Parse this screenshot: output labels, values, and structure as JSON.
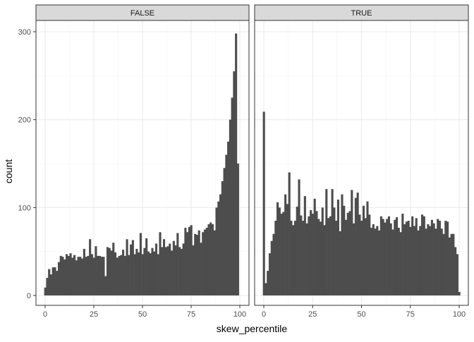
{
  "colors": {
    "bar": "#4d4d4d",
    "strip_fill": "#d9d9d9",
    "strip_border": "#333333",
    "panel_border": "#333333",
    "grid_major": "#ebebeb",
    "grid_minor": "#f5f5f5"
  },
  "chart_data": {
    "type": "bar",
    "subtype": "histogram",
    "xlabel": "skew_percentile",
    "ylabel": "count",
    "xlim": [
      0,
      100
    ],
    "ylim": [
      0,
      300
    ],
    "x_ticks": [
      0,
      25,
      50,
      75,
      100
    ],
    "y_ticks": [
      0,
      100,
      200,
      300
    ],
    "grid": true,
    "bin_width": 1,
    "panels": [
      {
        "label": "FALSE",
        "bins": [
          0,
          1,
          2,
          3,
          4,
          5,
          6,
          7,
          8,
          9,
          10,
          11,
          12,
          13,
          14,
          15,
          16,
          17,
          18,
          19,
          20,
          21,
          22,
          23,
          24,
          25,
          26,
          27,
          28,
          29,
          30,
          31,
          32,
          33,
          34,
          35,
          36,
          37,
          38,
          39,
          40,
          41,
          42,
          43,
          44,
          45,
          46,
          47,
          48,
          49,
          50,
          51,
          52,
          53,
          54,
          55,
          56,
          57,
          58,
          59,
          60,
          61,
          62,
          63,
          64,
          65,
          66,
          67,
          68,
          69,
          70,
          71,
          72,
          73,
          74,
          75,
          76,
          77,
          78,
          79,
          80,
          81,
          82,
          83,
          84,
          85,
          86,
          87,
          88,
          89,
          90,
          91,
          92,
          93,
          94,
          95,
          96,
          97,
          98,
          99,
          100
        ],
        "counts": [
          9,
          20,
          30,
          24,
          32,
          32,
          28,
          38,
          45,
          44,
          41,
          47,
          45,
          48,
          43,
          46,
          40,
          44,
          44,
          42,
          53,
          44,
          45,
          64,
          47,
          43,
          56,
          45,
          45,
          44,
          44,
          22,
          55,
          54,
          51,
          60,
          49,
          43,
          45,
          46,
          52,
          45,
          64,
          46,
          58,
          63,
          47,
          53,
          49,
          71,
          47,
          54,
          65,
          50,
          48,
          54,
          50,
          59,
          47,
          72,
          55,
          64,
          55,
          56,
          59,
          51,
          62,
          57,
          71,
          55,
          53,
          59,
          77,
          72,
          78,
          80,
          57,
          70,
          69,
          74,
          60,
          72,
          75,
          77,
          81,
          83,
          81,
          74,
          100,
          107,
          115,
          130,
          145,
          160,
          175,
          200,
          225,
          255,
          298,
          150,
          0
        ]
      },
      {
        "label": "TRUE",
        "bins": [
          0,
          1,
          2,
          3,
          4,
          5,
          6,
          7,
          8,
          9,
          10,
          11,
          12,
          13,
          14,
          15,
          16,
          17,
          18,
          19,
          20,
          21,
          22,
          23,
          24,
          25,
          26,
          27,
          28,
          29,
          30,
          31,
          32,
          33,
          34,
          35,
          36,
          37,
          38,
          39,
          40,
          41,
          42,
          43,
          44,
          45,
          46,
          47,
          48,
          49,
          50,
          51,
          52,
          53,
          54,
          55,
          56,
          57,
          58,
          59,
          60,
          61,
          62,
          63,
          64,
          65,
          66,
          67,
          68,
          69,
          70,
          71,
          72,
          73,
          74,
          75,
          76,
          77,
          78,
          79,
          80,
          81,
          82,
          83,
          84,
          85,
          86,
          87,
          88,
          89,
          90,
          91,
          92,
          93,
          94,
          95,
          96,
          97,
          98,
          99,
          100
        ],
        "counts": [
          209,
          14,
          28,
          48,
          62,
          70,
          85,
          106,
          100,
          93,
          95,
          115,
          104,
          140,
          85,
          80,
          85,
          101,
          132,
          91,
          85,
          113,
          82,
          90,
          97,
          93,
          110,
          96,
          87,
          84,
          100,
          80,
          121,
          88,
          90,
          121,
          100,
          85,
          109,
          73,
          115,
          102,
          86,
          94,
          96,
          120,
          82,
          111,
          117,
          92,
          85,
          102,
          88,
          107,
          92,
          77,
          81,
          76,
          79,
          74,
          90,
          87,
          83,
          87,
          90,
          82,
          75,
          86,
          89,
          77,
          72,
          93,
          81,
          84,
          85,
          78,
          90,
          79,
          88,
          74,
          79,
          92,
          90,
          76,
          81,
          79,
          86,
          82,
          76,
          87,
          85,
          76,
          70,
          85,
          84,
          66,
          70,
          70,
          55,
          47,
          4
        ]
      }
    ]
  }
}
